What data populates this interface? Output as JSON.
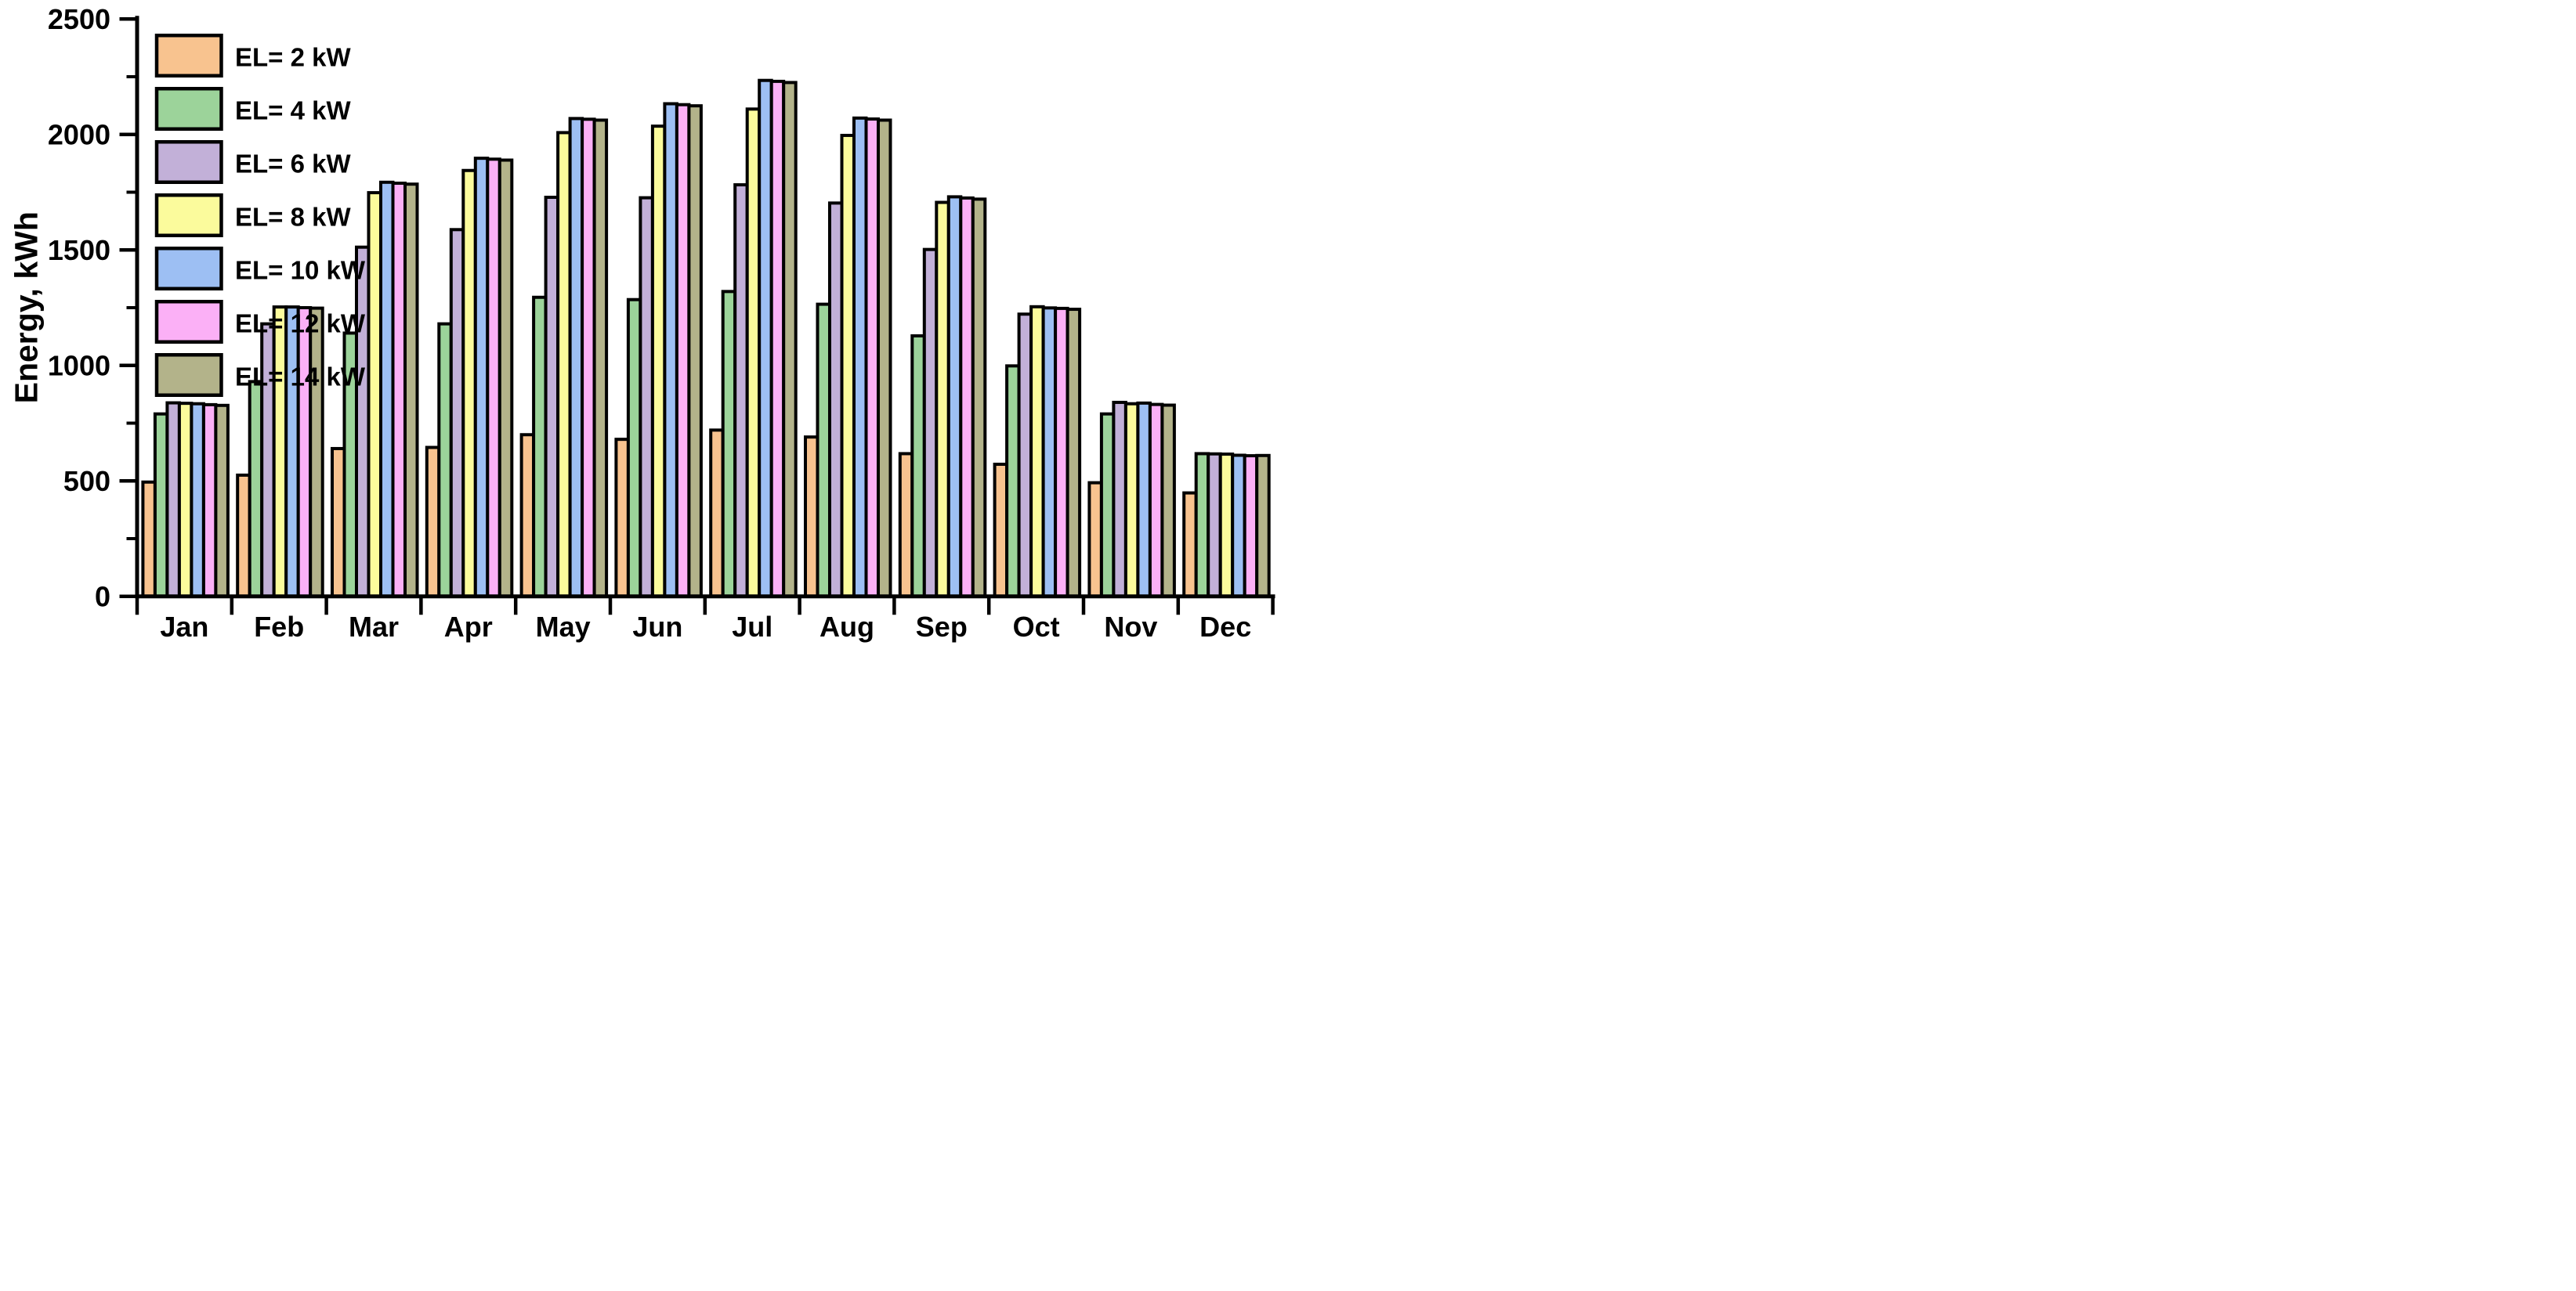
{
  "chart_data": {
    "type": "bar",
    "title": "",
    "xlabel": "",
    "ylabel": "Energy, kWh",
    "ylim": [
      0,
      2500
    ],
    "ytick_step": 500,
    "yminor_step": 250,
    "grid": false,
    "legend_position": "top-left",
    "categories": [
      "Jan",
      "Feb",
      "Mar",
      "Apr",
      "May",
      "Jun",
      "Jul",
      "Aug",
      "Sep",
      "Oct",
      "Nov",
      "Dec"
    ],
    "series": [
      {
        "name": "EL= 2 kW",
        "color": "#F8C38F",
        "values": [
          495,
          525,
          640,
          645,
          700,
          680,
          720,
          690,
          618,
          572,
          492,
          448
        ]
      },
      {
        "name": "EL= 4 kW",
        "color": "#9CD39A",
        "values": [
          790,
          930,
          1140,
          1180,
          1295,
          1285,
          1320,
          1265,
          1128,
          998,
          790,
          618
        ]
      },
      {
        "name": "EL= 6 kW",
        "color": "#C2B0D8",
        "values": [
          838,
          1180,
          1512,
          1588,
          1728,
          1726,
          1782,
          1703,
          1502,
          1222,
          840,
          617
        ]
      },
      {
        "name": "EL= 8 kW",
        "color": "#FBFB9C",
        "values": [
          836,
          1253,
          1748,
          1844,
          2008,
          2036,
          2110,
          1996,
          1706,
          1254,
          834,
          616
        ]
      },
      {
        "name": "EL= 10 kW",
        "color": "#9DBFF3",
        "values": [
          834,
          1253,
          1793,
          1897,
          2069,
          2133,
          2234,
          2071,
          1730,
          1249,
          837,
          611
        ]
      },
      {
        "name": "EL= 12 kW",
        "color": "#FBB0F6",
        "values": [
          830,
          1250,
          1789,
          1893,
          2066,
          2129,
          2230,
          2067,
          1725,
          1247,
          831,
          609
        ]
      },
      {
        "name": "EL= 14 kW",
        "color": "#B3B38A",
        "values": [
          827,
          1248,
          1785,
          1889,
          2062,
          2124,
          2225,
          2062,
          1720,
          1243,
          828,
          610
        ]
      }
    ],
    "axis_color": "#000000",
    "bar_border_color": "#000000"
  }
}
